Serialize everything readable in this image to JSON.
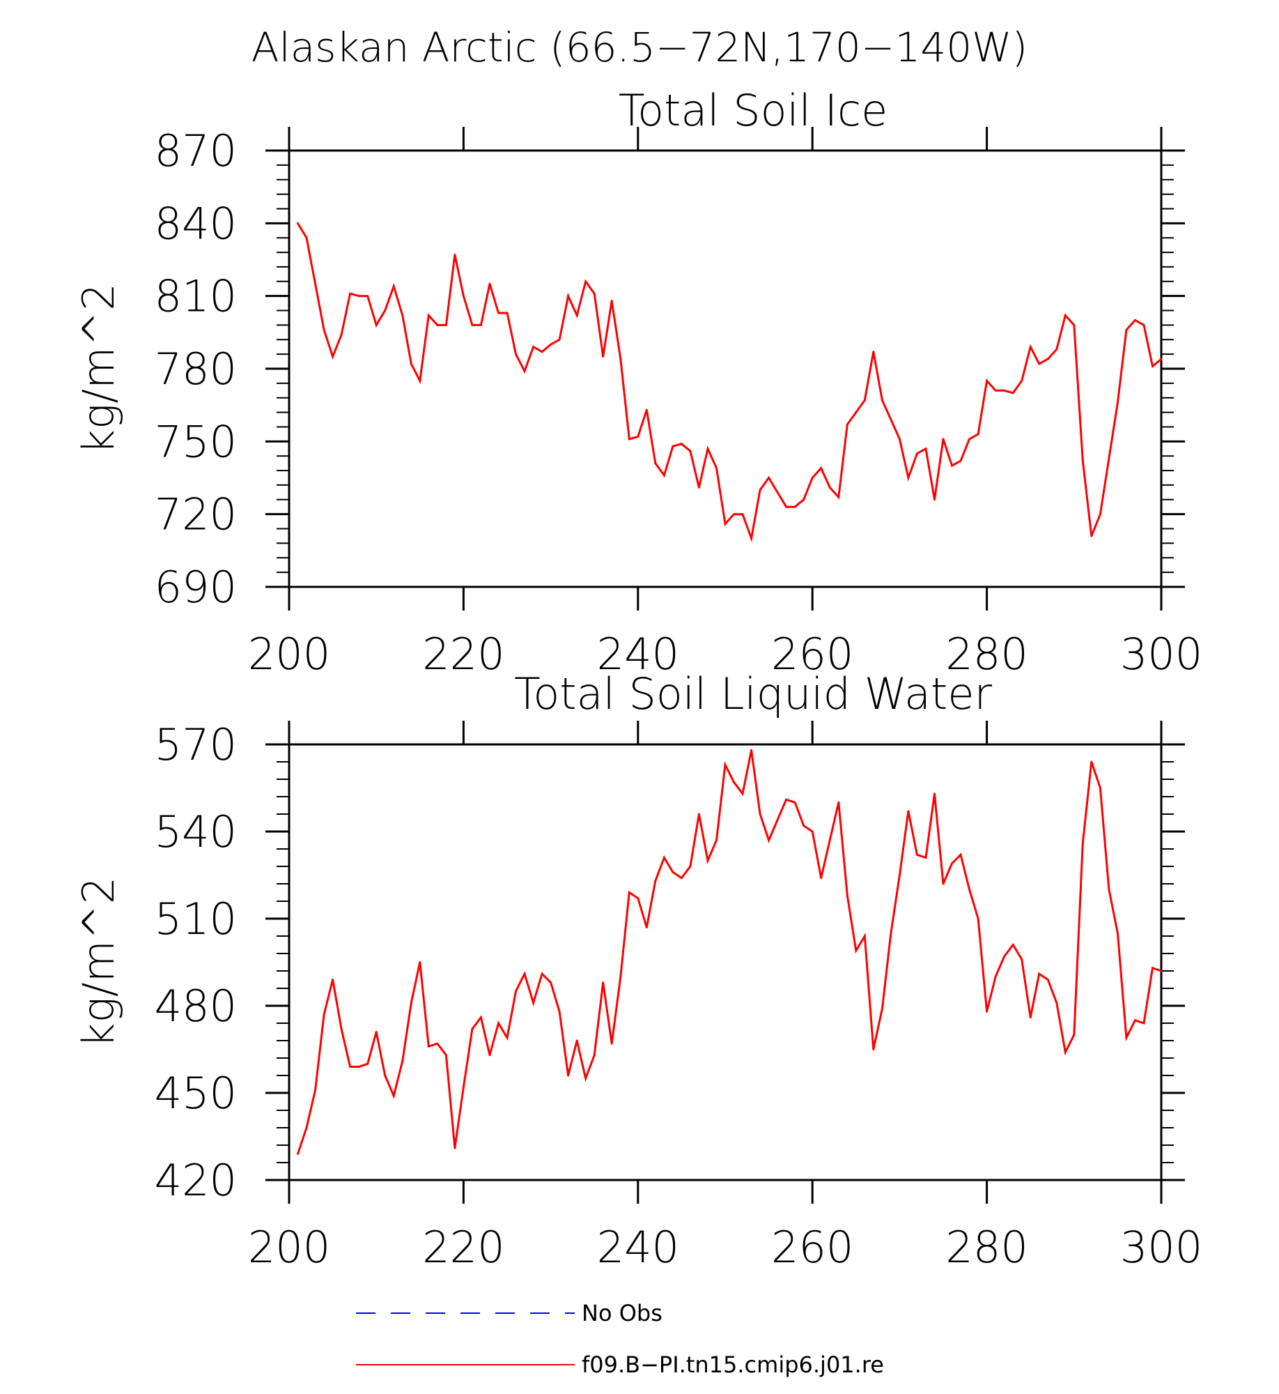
{
  "page": {
    "main_title": "Alaskan Arctic (66.5−72N,170−140W)"
  },
  "legend": {
    "items": [
      {
        "label": "No Obs",
        "color": "#0000ff",
        "style": "dashed"
      },
      {
        "label": "f09.B−PI.tn15.cmip6.j01.re",
        "color": "#ff0000",
        "style": "solid"
      }
    ]
  },
  "chart_data": [
    {
      "type": "line",
      "title": "Total Soil Ice",
      "ylabel": "kg/m^2",
      "xlabel": "",
      "xlim": [
        200,
        300
      ],
      "ylim": [
        690,
        870
      ],
      "xticks": [
        200,
        220,
        240,
        260,
        280,
        300
      ],
      "yticks": [
        690,
        720,
        750,
        780,
        810,
        840,
        870
      ],
      "grid": false,
      "series": [
        {
          "name": "f09.B−PI.tn15.cmip6.j01.re",
          "color": "#ff0000",
          "x": [
            201,
            202,
            203,
            204,
            205,
            206,
            207,
            208,
            209,
            210,
            211,
            212,
            213,
            214,
            215,
            216,
            217,
            218,
            219,
            220,
            221,
            222,
            223,
            224,
            225,
            226,
            227,
            228,
            229,
            230,
            231,
            232,
            233,
            234,
            235,
            236,
            237,
            238,
            239,
            240,
            241,
            242,
            243,
            244,
            245,
            246,
            247,
            248,
            249,
            250,
            251,
            252,
            253,
            254,
            255,
            256,
            257,
            258,
            259,
            260,
            261,
            262,
            263,
            264,
            265,
            266,
            267,
            268,
            269,
            270,
            271,
            272,
            273,
            274,
            275,
            276,
            277,
            278,
            279,
            280,
            281,
            282,
            283,
            284,
            285,
            286,
            287,
            288,
            289,
            290,
            291,
            292,
            293,
            294,
            295,
            296,
            297,
            298,
            299,
            300
          ],
          "values": [
            840,
            834,
            815,
            796,
            785,
            794,
            811,
            810,
            810,
            798,
            804,
            814,
            802,
            782,
            775,
            802,
            798,
            798,
            827,
            810,
            798,
            798,
            815,
            803,
            803,
            786,
            779,
            789,
            787,
            790,
            792,
            810,
            802,
            816,
            811,
            785,
            808,
            784,
            751,
            752,
            763,
            741,
            736,
            748,
            749,
            746,
            731,
            747,
            739,
            716,
            720,
            720,
            710,
            730,
            735,
            729,
            723,
            723,
            726,
            735,
            739,
            731,
            727,
            757,
            762,
            767,
            787,
            767,
            759,
            751,
            735,
            745,
            747,
            726,
            751,
            740,
            742,
            751,
            753,
            775,
            771,
            771,
            770,
            775,
            789,
            782,
            784,
            788,
            802,
            798,
            742,
            711,
            720,
            743,
            766,
            796,
            800,
            798,
            781,
            784
          ]
        }
      ]
    },
    {
      "type": "line",
      "title": "Total Soil Liquid Water",
      "ylabel": "kg/m^2",
      "xlabel": "",
      "xlim": [
        200,
        300
      ],
      "ylim": [
        420,
        570
      ],
      "xticks": [
        200,
        220,
        240,
        260,
        280,
        300
      ],
      "yticks": [
        420,
        450,
        480,
        510,
        540,
        570
      ],
      "grid": false,
      "series": [
        {
          "name": "f09.B−PI.tn15.cmip6.j01.re",
          "color": "#ff0000",
          "x": [
            201,
            202,
            203,
            204,
            205,
            206,
            207,
            208,
            209,
            210,
            211,
            212,
            213,
            214,
            215,
            216,
            217,
            218,
            219,
            220,
            221,
            222,
            223,
            224,
            225,
            226,
            227,
            228,
            229,
            230,
            231,
            232,
            233,
            234,
            235,
            236,
            237,
            238,
            239,
            240,
            241,
            242,
            243,
            244,
            245,
            246,
            247,
            248,
            249,
            250,
            251,
            252,
            253,
            254,
            255,
            256,
            257,
            258,
            259,
            260,
            261,
            262,
            263,
            264,
            265,
            266,
            267,
            268,
            269,
            270,
            271,
            272,
            273,
            274,
            275,
            276,
            277,
            278,
            279,
            280,
            281,
            282,
            283,
            284,
            285,
            286,
            287,
            288,
            289,
            290,
            291,
            292,
            293,
            294,
            295,
            296,
            297,
            298,
            299,
            300
          ],
          "values": [
            429,
            438,
            451,
            477,
            489,
            472,
            459,
            459,
            460,
            471,
            456,
            449,
            461,
            481,
            495,
            466,
            467,
            463,
            431,
            452,
            472,
            476,
            463,
            474,
            469,
            485,
            491,
            481,
            491,
            488,
            478,
            456,
            468,
            455,
            463,
            488,
            467,
            490,
            519,
            517,
            507,
            523,
            531,
            526,
            524,
            528,
            546,
            530,
            537,
            563,
            557,
            553,
            568,
            546,
            537,
            544,
            551,
            550,
            542,
            540,
            524,
            537,
            550,
            518,
            499,
            504,
            465,
            479,
            505,
            525,
            547,
            532,
            531,
            553,
            522,
            529,
            532,
            520,
            510,
            478,
            490,
            497,
            501,
            496,
            476,
            491,
            489,
            481,
            464,
            470,
            536,
            564,
            555,
            520,
            505,
            469,
            475,
            474,
            493,
            492
          ]
        }
      ]
    }
  ]
}
